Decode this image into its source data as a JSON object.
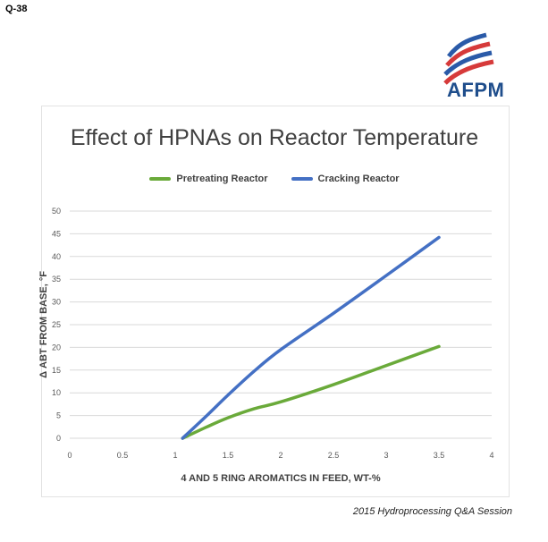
{
  "header": {
    "question_number": "Q-38"
  },
  "logo": {
    "text": "AFPM",
    "colors": [
      "#2a5aa8",
      "#d63a3a"
    ]
  },
  "footer": {
    "text": "2015 Hydroprocessing Q&A Session"
  },
  "chart_data": {
    "type": "line",
    "title": "Effect of HPNAs on Reactor Temperature",
    "xlabel": "4 AND 5 RING AROMATICS IN FEED, WT-%",
    "ylabel": "Δ ABT FROM BASE, °F",
    "xlim": [
      0,
      4
    ],
    "ylim": [
      0,
      50
    ],
    "xticks": [
      0,
      0.5,
      1,
      1.5,
      2,
      2.5,
      3,
      3.5,
      4
    ],
    "xtick_labels": [
      "0",
      "0.5",
      "1",
      "1.5",
      "2",
      "2.5",
      "3",
      "3.5",
      "4"
    ],
    "yticks": [
      0,
      5,
      10,
      15,
      20,
      25,
      30,
      35,
      40,
      45,
      50
    ],
    "ytick_labels": [
      "0",
      "5",
      "10",
      "15",
      "20",
      "25",
      "30",
      "35",
      "40",
      "45",
      "50"
    ],
    "grid": true,
    "legend_position": "top",
    "series": [
      {
        "name": "Pretreating Reactor",
        "color": "#6aaa3a",
        "x": [
          1.07,
          1.3,
          1.5,
          1.75,
          2.0,
          2.5,
          3.0,
          3.5
        ],
        "y": [
          0,
          2.5,
          4.5,
          6.5,
          8.0,
          11.8,
          16.0,
          20.2
        ]
      },
      {
        "name": "Cracking Reactor",
        "color": "#4470c4",
        "x": [
          1.07,
          1.3,
          1.5,
          1.75,
          2.0,
          2.5,
          3.0,
          3.5
        ],
        "y": [
          0,
          5.0,
          9.5,
          14.8,
          19.5,
          27.5,
          35.8,
          44.2
        ]
      }
    ]
  }
}
